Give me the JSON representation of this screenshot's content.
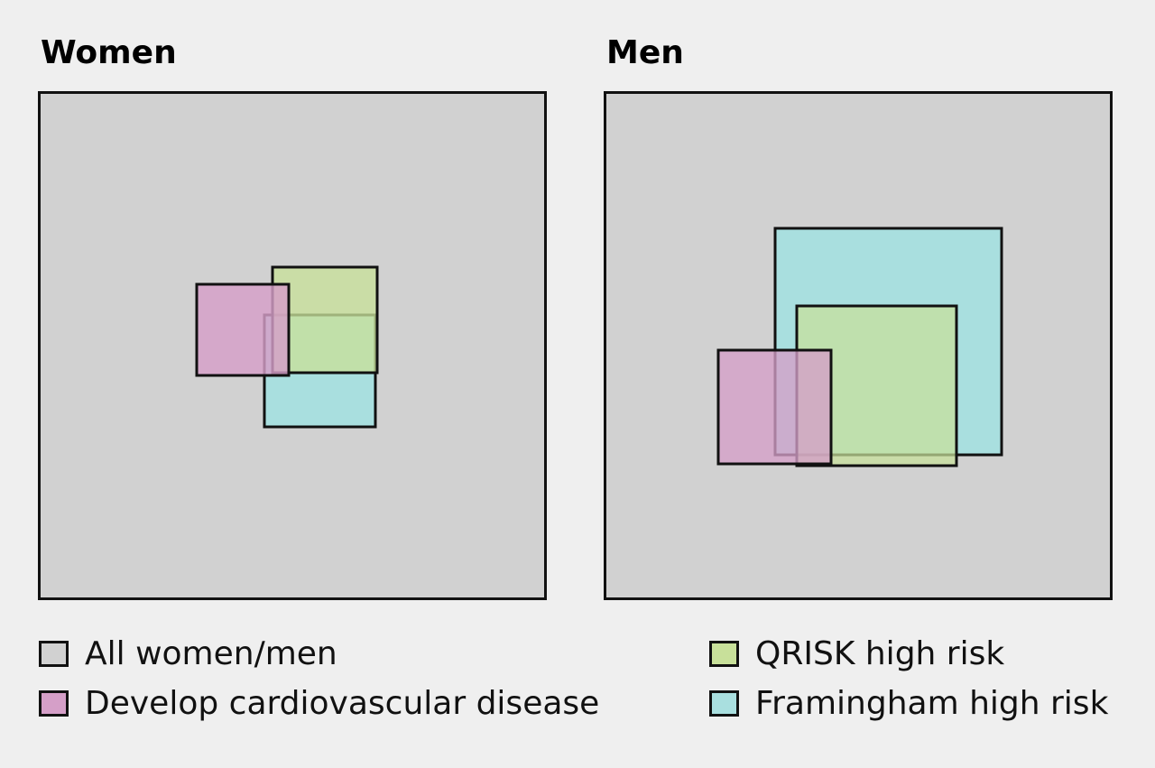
{
  "panels": {
    "women": {
      "title": "Women",
      "sets": {
        "develop_cvd_fraction": 0.0325,
        "qrisk_high_risk_fraction": 0.0367,
        "framingham_high_risk_fraction": 0.0395
      }
    },
    "men": {
      "title": "Men",
      "sets": {
        "develop_cvd_fraction": 0.0493,
        "qrisk_high_risk_fraction": 0.0991,
        "framingham_high_risk_fraction": 0.1576
      }
    }
  },
  "legend": {
    "all": "All women/men",
    "cvd": "Develop cardiovascular disease",
    "qrisk": "QRISK high risk",
    "framingham": "Framingham high risk"
  },
  "colors": {
    "background": "#efefef",
    "all_population": "#d1d1d1",
    "develop_cvd": "#d59fc8",
    "qrisk_high_risk": "#c8e09a",
    "framingham_high_risk": "#a9dfdf",
    "outline": "#111111"
  }
}
